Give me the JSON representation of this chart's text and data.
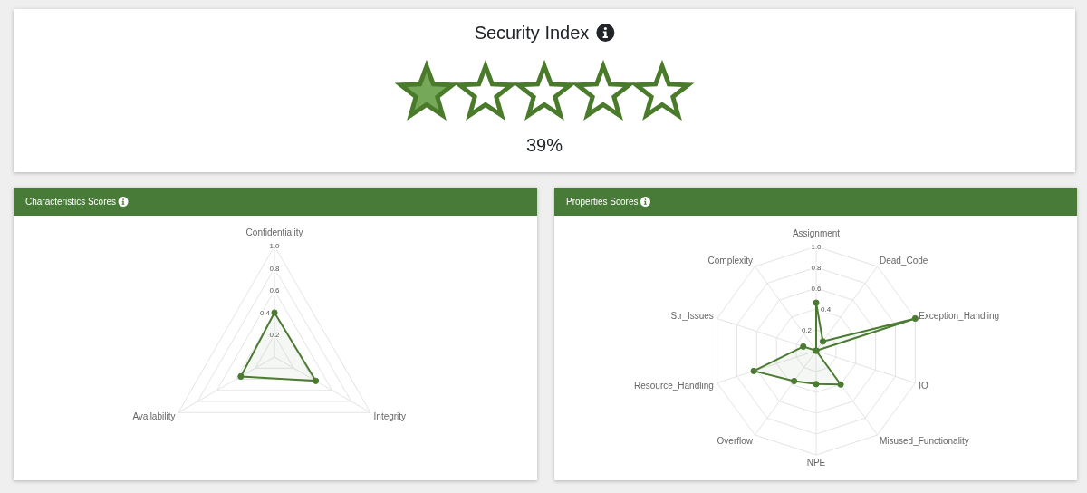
{
  "chart_data": [
    {
      "type": "other",
      "title": "Security Index",
      "annotations": [
        "39%"
      ]
    },
    {
      "type": "radar",
      "title": "Characteristics Scores",
      "categories": [
        "Confidentiality",
        "Integrity",
        "Availability"
      ],
      "series": [
        {
          "color": "#4b7b31",
          "values": [
            0.4,
            0.43,
            0.35
          ]
        }
      ],
      "ylim": [
        0,
        1
      ],
      "yticks": [
        0.2,
        0.4,
        0.6,
        0.8,
        {
          "value": 1,
          "label": "1.0"
        }
      ],
      "grid": true,
      "marker": "circle"
    },
    {
      "type": "radar",
      "title": "Properties Scores",
      "categories": [
        "Assignment",
        "Dead_Code",
        "Exception_Handling",
        "IO",
        "Misused_Functionality",
        "NPE",
        "Overflow",
        "Resource_Handling",
        "Str_Issues",
        "Complexity"
      ],
      "series": [
        {
          "color": "#4b7b31",
          "values": [
            0.46,
            0.11,
            1.0,
            0,
            0.4,
            0.32,
            0.36,
            0.63,
            0.13,
            0
          ]
        }
      ],
      "ylim": [
        0,
        1
      ],
      "yticks": [
        0.2,
        0.4,
        0.6,
        0.8,
        {
          "value": 1,
          "label": "1.0"
        }
      ],
      "grid": true,
      "marker": "circle"
    }
  ]
}
